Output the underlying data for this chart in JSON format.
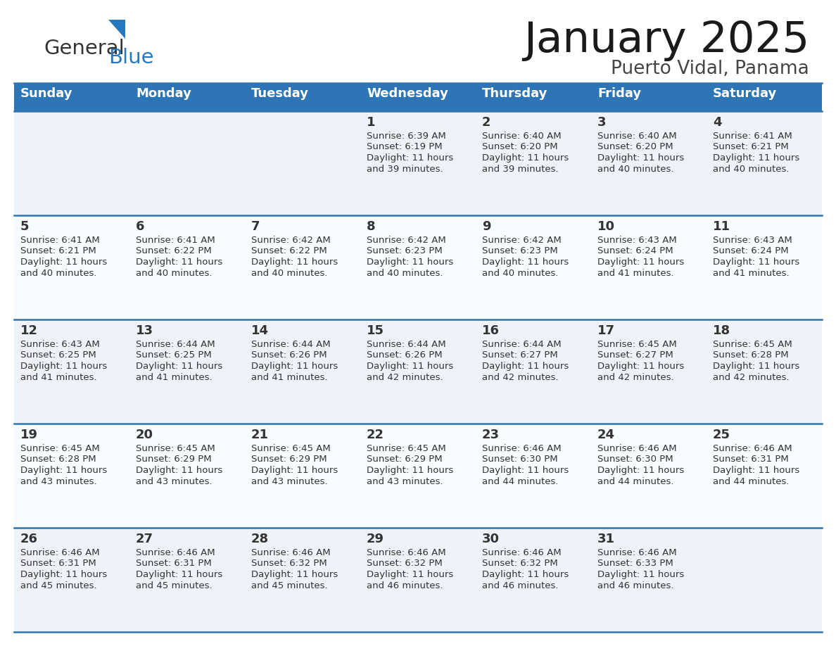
{
  "title": "January 2025",
  "subtitle": "Puerto Vidal, Panama",
  "header_color": "#2E75B6",
  "header_text_color": "#FFFFFF",
  "days_of_week": [
    "Sunday",
    "Monday",
    "Tuesday",
    "Wednesday",
    "Thursday",
    "Friday",
    "Saturday"
  ],
  "calendar": [
    [
      {
        "day": "",
        "sunrise": "",
        "sunset": "",
        "daylight_h": "",
        "daylight_m": ""
      },
      {
        "day": "",
        "sunrise": "",
        "sunset": "",
        "daylight_h": "",
        "daylight_m": ""
      },
      {
        "day": "",
        "sunrise": "",
        "sunset": "",
        "daylight_h": "",
        "daylight_m": ""
      },
      {
        "day": "1",
        "sunrise": "6:39 AM",
        "sunset": "6:19 PM",
        "daylight_h": "11",
        "daylight_m": "39"
      },
      {
        "day": "2",
        "sunrise": "6:40 AM",
        "sunset": "6:20 PM",
        "daylight_h": "11",
        "daylight_m": "39"
      },
      {
        "day": "3",
        "sunrise": "6:40 AM",
        "sunset": "6:20 PM",
        "daylight_h": "11",
        "daylight_m": "40"
      },
      {
        "day": "4",
        "sunrise": "6:41 AM",
        "sunset": "6:21 PM",
        "daylight_h": "11",
        "daylight_m": "40"
      }
    ],
    [
      {
        "day": "5",
        "sunrise": "6:41 AM",
        "sunset": "6:21 PM",
        "daylight_h": "11",
        "daylight_m": "40"
      },
      {
        "day": "6",
        "sunrise": "6:41 AM",
        "sunset": "6:22 PM",
        "daylight_h": "11",
        "daylight_m": "40"
      },
      {
        "day": "7",
        "sunrise": "6:42 AM",
        "sunset": "6:22 PM",
        "daylight_h": "11",
        "daylight_m": "40"
      },
      {
        "day": "8",
        "sunrise": "6:42 AM",
        "sunset": "6:23 PM",
        "daylight_h": "11",
        "daylight_m": "40"
      },
      {
        "day": "9",
        "sunrise": "6:42 AM",
        "sunset": "6:23 PM",
        "daylight_h": "11",
        "daylight_m": "40"
      },
      {
        "day": "10",
        "sunrise": "6:43 AM",
        "sunset": "6:24 PM",
        "daylight_h": "11",
        "daylight_m": "41"
      },
      {
        "day": "11",
        "sunrise": "6:43 AM",
        "sunset": "6:24 PM",
        "daylight_h": "11",
        "daylight_m": "41"
      }
    ],
    [
      {
        "day": "12",
        "sunrise": "6:43 AM",
        "sunset": "6:25 PM",
        "daylight_h": "11",
        "daylight_m": "41"
      },
      {
        "day": "13",
        "sunrise": "6:44 AM",
        "sunset": "6:25 PM",
        "daylight_h": "11",
        "daylight_m": "41"
      },
      {
        "day": "14",
        "sunrise": "6:44 AM",
        "sunset": "6:26 PM",
        "daylight_h": "11",
        "daylight_m": "41"
      },
      {
        "day": "15",
        "sunrise": "6:44 AM",
        "sunset": "6:26 PM",
        "daylight_h": "11",
        "daylight_m": "42"
      },
      {
        "day": "16",
        "sunrise": "6:44 AM",
        "sunset": "6:27 PM",
        "daylight_h": "11",
        "daylight_m": "42"
      },
      {
        "day": "17",
        "sunrise": "6:45 AM",
        "sunset": "6:27 PM",
        "daylight_h": "11",
        "daylight_m": "42"
      },
      {
        "day": "18",
        "sunrise": "6:45 AM",
        "sunset": "6:28 PM",
        "daylight_h": "11",
        "daylight_m": "42"
      }
    ],
    [
      {
        "day": "19",
        "sunrise": "6:45 AM",
        "sunset": "6:28 PM",
        "daylight_h": "11",
        "daylight_m": "43"
      },
      {
        "day": "20",
        "sunrise": "6:45 AM",
        "sunset": "6:29 PM",
        "daylight_h": "11",
        "daylight_m": "43"
      },
      {
        "day": "21",
        "sunrise": "6:45 AM",
        "sunset": "6:29 PM",
        "daylight_h": "11",
        "daylight_m": "43"
      },
      {
        "day": "22",
        "sunrise": "6:45 AM",
        "sunset": "6:29 PM",
        "daylight_h": "11",
        "daylight_m": "43"
      },
      {
        "day": "23",
        "sunrise": "6:46 AM",
        "sunset": "6:30 PM",
        "daylight_h": "11",
        "daylight_m": "44"
      },
      {
        "day": "24",
        "sunrise": "6:46 AM",
        "sunset": "6:30 PM",
        "daylight_h": "11",
        "daylight_m": "44"
      },
      {
        "day": "25",
        "sunrise": "6:46 AM",
        "sunset": "6:31 PM",
        "daylight_h": "11",
        "daylight_m": "44"
      }
    ],
    [
      {
        "day": "26",
        "sunrise": "6:46 AM",
        "sunset": "6:31 PM",
        "daylight_h": "11",
        "daylight_m": "45"
      },
      {
        "day": "27",
        "sunrise": "6:46 AM",
        "sunset": "6:31 PM",
        "daylight_h": "11",
        "daylight_m": "45"
      },
      {
        "day": "28",
        "sunrise": "6:46 AM",
        "sunset": "6:32 PM",
        "daylight_h": "11",
        "daylight_m": "45"
      },
      {
        "day": "29",
        "sunrise": "6:46 AM",
        "sunset": "6:32 PM",
        "daylight_h": "11",
        "daylight_m": "46"
      },
      {
        "day": "30",
        "sunrise": "6:46 AM",
        "sunset": "6:32 PM",
        "daylight_h": "11",
        "daylight_m": "46"
      },
      {
        "day": "31",
        "sunrise": "6:46 AM",
        "sunset": "6:33 PM",
        "daylight_h": "11",
        "daylight_m": "46"
      },
      {
        "day": "",
        "sunrise": "",
        "sunset": "",
        "daylight_h": "",
        "daylight_m": ""
      }
    ]
  ],
  "logo_text1": "General",
  "logo_text2": "Blue",
  "logo_color1": "#333333",
  "logo_color2": "#2779BD",
  "divider_color": "#2E75B6",
  "text_color": "#333333",
  "day_num_color": "#333333",
  "bg_color_even": "#EEF3FA",
  "bg_color_odd": "#F7FAFF"
}
